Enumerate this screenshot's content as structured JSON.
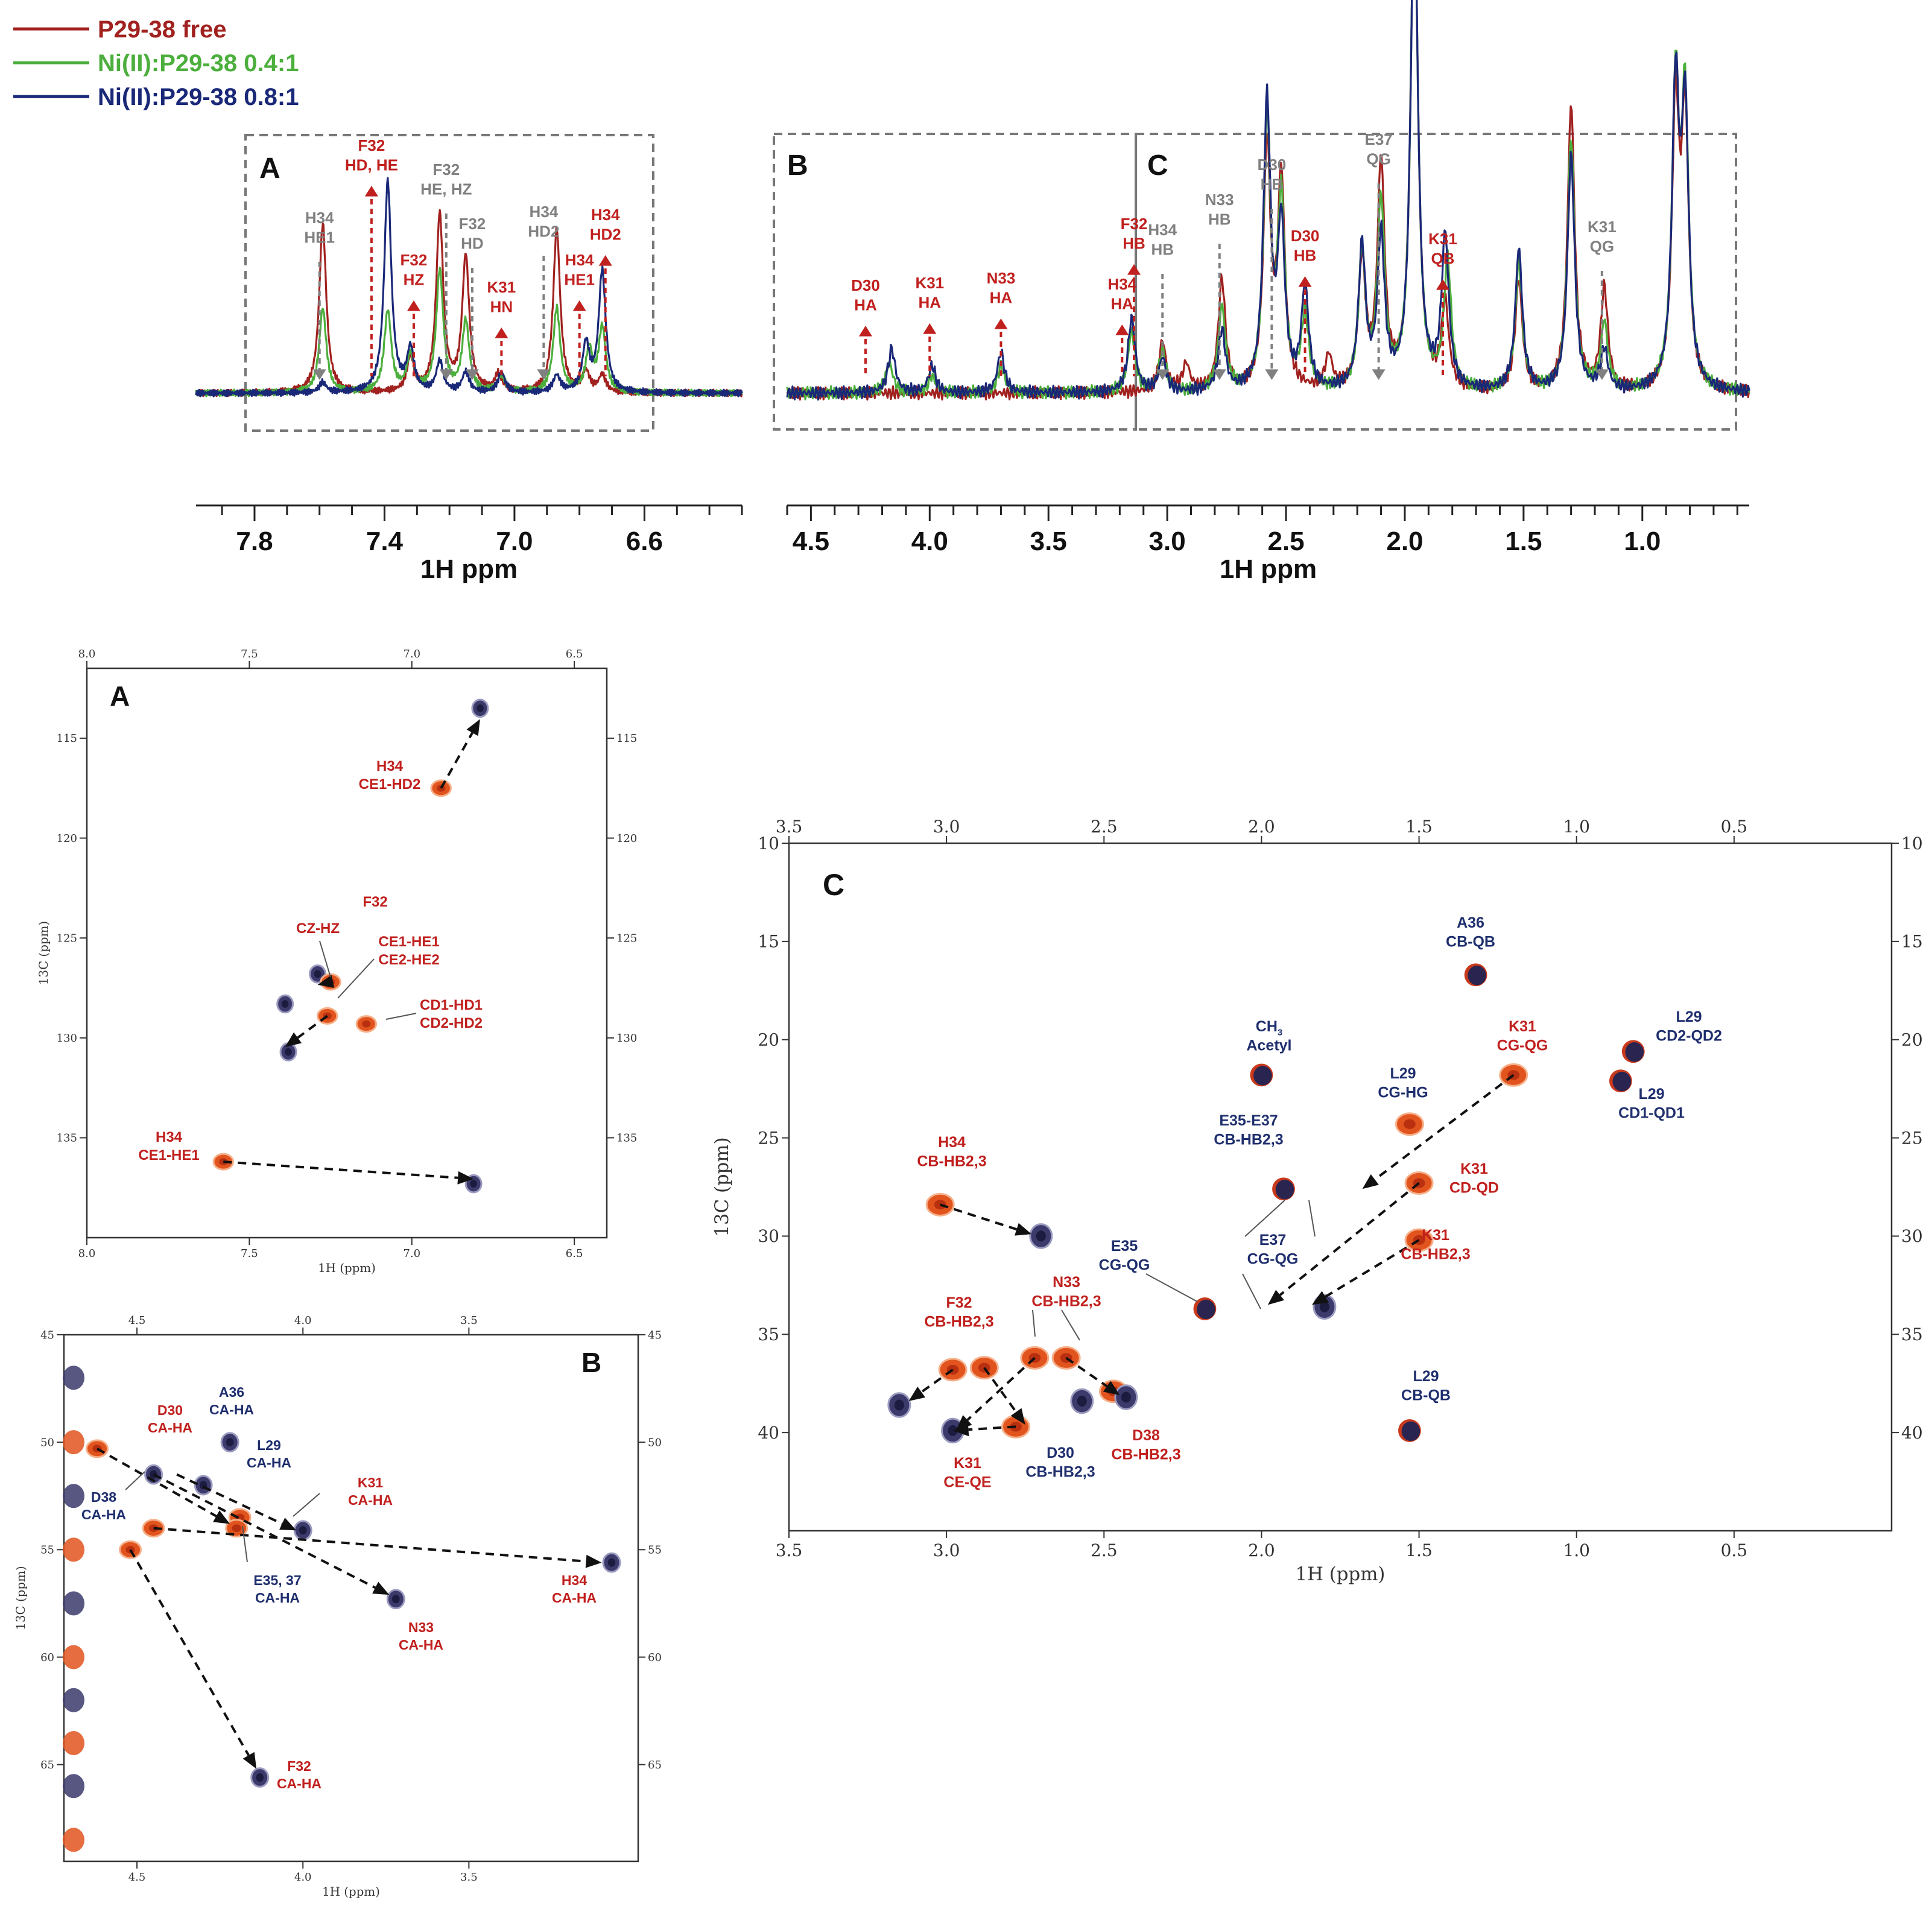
{
  "legend": [
    {
      "name": "P29-38 free",
      "color": "#a0211f"
    },
    {
      "name": "Ni(II):P29-38 0.4:1",
      "color": "#4caf3d"
    },
    {
      "name": "Ni(II):P29-38 0.8:1",
      "color": "#1a2878"
    }
  ],
  "colors": {
    "red": "#c0201e",
    "grey": "#808080",
    "navy": "#1f2f6e",
    "free_peak": "#e2541e",
    "bound_peak": "#3b3a6b"
  },
  "chart_data": [
    {
      "type": "line",
      "panel": "1D top-left",
      "xlabel": "1H ppm",
      "xticks": [
        "7.8",
        "7.4",
        "7.0",
        "6.6"
      ],
      "xlim": [
        7.98,
        6.3
      ],
      "box_label": "A",
      "series": [
        {
          "name": "P29-38 free",
          "peaks": [
            [
              7.59,
              1.0
            ],
            [
              7.39,
              0.0
            ],
            [
              7.32,
              0.2
            ],
            [
              7.23,
              1.05
            ],
            [
              7.15,
              0.8
            ],
            [
              7.05,
              0.1
            ],
            [
              6.87,
              0.97
            ],
            [
              6.78,
              0.12
            ],
            [
              6.73,
              0.1
            ]
          ]
        },
        {
          "name": "Ni(II):P29-38 0.4:1",
          "peaks": [
            [
              7.59,
              0.5
            ],
            [
              7.39,
              0.48
            ],
            [
              7.32,
              0.22
            ],
            [
              7.23,
              0.72
            ],
            [
              7.15,
              0.42
            ],
            [
              7.04,
              0.1
            ],
            [
              6.87,
              0.5
            ],
            [
              6.77,
              0.25
            ],
            [
              6.73,
              0.38
            ]
          ]
        },
        {
          "name": "Ni(II):P29-38 0.8:1",
          "peaks": [
            [
              7.59,
              0.06
            ],
            [
              7.39,
              1.25
            ],
            [
              7.32,
              0.25
            ],
            [
              7.23,
              0.18
            ],
            [
              7.15,
              0.12
            ],
            [
              7.04,
              0.12
            ],
            [
              6.87,
              0.1
            ],
            [
              6.78,
              0.28
            ],
            [
              6.73,
              0.72
            ]
          ]
        }
      ],
      "annotations": [
        {
          "text": [
            "H34",
            "HE1"
          ],
          "x": 7.6,
          "color": "grey",
          "arrow": "down"
        },
        {
          "text": [
            "F32",
            "HD, HE"
          ],
          "x": 7.44,
          "color": "red",
          "arrow": "up"
        },
        {
          "text": [
            "F32",
            "HZ"
          ],
          "x": 7.31,
          "color": "red",
          "arrow": "up"
        },
        {
          "text": [
            "F32",
            "HE, HZ"
          ],
          "x": 7.21,
          "color": "grey",
          "arrow": "down"
        },
        {
          "text": [
            "F32",
            "HD"
          ],
          "x": 7.13,
          "color": "grey",
          "arrow": "down"
        },
        {
          "text": [
            "K31",
            "HN"
          ],
          "x": 7.04,
          "color": "red",
          "arrow": "up"
        },
        {
          "text": [
            "H34",
            "HD2"
          ],
          "x": 6.91,
          "color": "grey",
          "arrow": "down"
        },
        {
          "text": [
            "H34",
            "HE1"
          ],
          "x": 6.8,
          "color": "red",
          "arrow": "up"
        },
        {
          "text": [
            "H34",
            "HD2"
          ],
          "x": 6.72,
          "color": "red",
          "arrow": "up"
        }
      ]
    },
    {
      "type": "line",
      "panel": "1D top-right",
      "xlabel": "1H ppm",
      "xticks": [
        "4.5",
        "4.0",
        "3.5",
        "3.0",
        "2.5",
        "2.0",
        "1.5",
        "1.0"
      ],
      "xlim": [
        4.6,
        0.55
      ],
      "box_labels": [
        "B",
        "C"
      ],
      "series": [
        {
          "name": "P29-38 free",
          "peaks": [
            [
              3.02,
              0.15
            ],
            [
              2.92,
              0.08
            ],
            [
              2.77,
              0.33
            ],
            [
              2.58,
              0.72
            ],
            [
              2.52,
              0.62
            ],
            [
              2.32,
              0.1
            ],
            [
              2.18,
              0.38
            ],
            [
              2.1,
              0.67
            ],
            [
              1.96,
              1.52
            ],
            [
              1.83,
              0.25
            ],
            [
              1.52,
              0.33
            ],
            [
              1.3,
              0.85
            ],
            [
              1.16,
              0.3
            ],
            [
              0.86,
              0.82
            ],
            [
              0.82,
              0.78
            ]
          ]
        },
        {
          "name": "Ni(II):P29-38 0.4:1",
          "peaks": [
            [
              4.17,
              0.09
            ],
            [
              3.99,
              0.05
            ],
            [
              3.7,
              0.08
            ],
            [
              3.15,
              0.18
            ],
            [
              3.02,
              0.12
            ],
            [
              2.77,
              0.25
            ],
            [
              2.58,
              0.8
            ],
            [
              2.52,
              0.55
            ],
            [
              2.42,
              0.22
            ],
            [
              2.18,
              0.4
            ],
            [
              2.1,
              0.55
            ],
            [
              1.96,
              1.52
            ],
            [
              1.82,
              0.38
            ],
            [
              1.52,
              0.38
            ],
            [
              1.3,
              0.75
            ],
            [
              1.16,
              0.2
            ],
            [
              0.86,
              0.88
            ],
            [
              0.82,
              0.82
            ]
          ]
        },
        {
          "name": "Ni(II):P29-38 0.8:1",
          "peaks": [
            [
              4.16,
              0.13
            ],
            [
              3.99,
              0.08
            ],
            [
              3.7,
              0.12
            ],
            [
              3.15,
              0.22
            ],
            [
              3.02,
              0.1
            ],
            [
              2.77,
              0.18
            ],
            [
              2.58,
              0.85
            ],
            [
              2.52,
              0.48
            ],
            [
              2.42,
              0.3
            ],
            [
              2.18,
              0.42
            ],
            [
              2.1,
              0.45
            ],
            [
              1.96,
              1.52
            ],
            [
              1.83,
              0.45
            ],
            [
              1.52,
              0.42
            ],
            [
              1.3,
              0.7
            ],
            [
              1.16,
              0.12
            ],
            [
              0.86,
              0.88
            ],
            [
              0.82,
              0.8
            ]
          ]
        }
      ],
      "annotations": [
        {
          "text": [
            "D30",
            "HA"
          ],
          "x": 4.27,
          "color": "red",
          "arrow": "up"
        },
        {
          "text": [
            "K31",
            "HA"
          ],
          "x": 4.0,
          "color": "red",
          "arrow": "up"
        },
        {
          "text": [
            "N33",
            "HA"
          ],
          "x": 3.7,
          "color": "red",
          "arrow": "up"
        },
        {
          "text": [
            "H34",
            "HA"
          ],
          "x": 3.19,
          "color": "red",
          "arrow": "up"
        },
        {
          "text": [
            "F32",
            "HB"
          ],
          "x": 3.14,
          "color": "red",
          "arrow": "up"
        },
        {
          "text": [
            "H34",
            "HB"
          ],
          "x": 3.02,
          "color": "grey",
          "arrow": "down"
        },
        {
          "text": [
            "N33",
            "HB"
          ],
          "x": 2.78,
          "color": "grey",
          "arrow": "down"
        },
        {
          "text": [
            "D30",
            "HB"
          ],
          "x": 2.56,
          "color": "grey",
          "arrow": "down"
        },
        {
          "text": [
            "D30",
            "HB"
          ],
          "x": 2.42,
          "color": "red",
          "arrow": "up"
        },
        {
          "text": [
            "E37",
            "QG"
          ],
          "x": 2.11,
          "color": "grey",
          "arrow": "down"
        },
        {
          "text": [
            "K31",
            "QB"
          ],
          "x": 1.84,
          "color": "red",
          "arrow": "up"
        },
        {
          "text": [
            "K31",
            "QG"
          ],
          "x": 1.17,
          "color": "grey",
          "arrow": "down"
        }
      ]
    },
    {
      "type": "scatter",
      "panel": "2D A",
      "box_label": "A",
      "xlabel": "1H (ppm)",
      "ylabel": "13C (ppm)",
      "xlim": [
        8.0,
        6.4
      ],
      "ylim": [
        111.5,
        140
      ],
      "xticks": [
        "8.0",
        "7.5",
        "7.0",
        "6.5"
      ],
      "yticks": [
        "115",
        "120",
        "125",
        "130",
        "135"
      ],
      "peaks": [
        {
          "h": 6.79,
          "c": 113.5,
          "state": "bound"
        },
        {
          "h": 6.91,
          "c": 117.5,
          "state": "free"
        },
        {
          "h": 7.29,
          "c": 126.8,
          "state": "bound"
        },
        {
          "h": 7.25,
          "c": 127.2,
          "state": "free"
        },
        {
          "h": 7.39,
          "c": 128.3,
          "state": "bound"
        },
        {
          "h": 7.26,
          "c": 128.9,
          "state": "free"
        },
        {
          "h": 7.14,
          "c": 129.3,
          "state": "free"
        },
        {
          "h": 7.38,
          "c": 130.7,
          "state": "bound"
        },
        {
          "h": 7.58,
          "c": 136.2,
          "state": "free"
        },
        {
          "h": 6.81,
          "c": 137.3,
          "state": "bound"
        }
      ],
      "labels": [
        {
          "text": [
            "H34",
            "CE1-HD2"
          ],
          "color": "red"
        },
        {
          "text": [
            "F32"
          ],
          "color": "red"
        },
        {
          "text": [
            "CZ-HZ"
          ],
          "color": "red"
        },
        {
          "text": [
            "CE1-HE1",
            "CE2-HE2"
          ],
          "color": "red"
        },
        {
          "text": [
            "CD1-HD1",
            "CD2-HD2"
          ],
          "color": "red"
        },
        {
          "text": [
            "H34",
            "CE1-HE1"
          ],
          "color": "red"
        }
      ]
    },
    {
      "type": "scatter",
      "panel": "2D B",
      "box_label": "B",
      "xlabel": "1H (ppm)",
      "ylabel": "13C (ppm)",
      "xlim": [
        4.72,
        2.99
      ],
      "ylim": [
        45,
        69.5
      ],
      "xticks": [
        "4.5",
        "4.0",
        "3.5"
      ],
      "yticks": [
        "45",
        "50",
        "55",
        "60",
        "65"
      ],
      "peaks": [
        {
          "h": 4.22,
          "c": 50.0,
          "state": "bound"
        },
        {
          "h": 4.3,
          "c": 52.0,
          "state": "bound"
        },
        {
          "h": 4.45,
          "c": 51.5,
          "state": "bound"
        },
        {
          "h": 4.19,
          "c": 53.5,
          "state": "free"
        },
        {
          "h": 4.2,
          "c": 54.0,
          "state": "free"
        },
        {
          "h": 4.0,
          "c": 54.1,
          "state": "bound"
        },
        {
          "h": 3.72,
          "c": 57.3,
          "state": "bound"
        },
        {
          "h": 3.07,
          "c": 55.6,
          "state": "bound"
        },
        {
          "h": 4.13,
          "c": 65.6,
          "state": "bound"
        },
        {
          "h": 4.62,
          "c": 50.3,
          "state": "free"
        },
        {
          "h": 4.45,
          "c": 54.0,
          "state": "free"
        },
        {
          "h": 4.52,
          "c": 55.0,
          "state": "free"
        }
      ],
      "labels": [
        {
          "text": [
            "A36",
            "CA-HA"
          ],
          "color": "navy"
        },
        {
          "text": [
            "D30",
            "CA-HA"
          ],
          "color": "red"
        },
        {
          "text": [
            "L29",
            "CA-HA"
          ],
          "color": "navy"
        },
        {
          "text": [
            "K31",
            "CA-HA"
          ],
          "color": "red"
        },
        {
          "text": [
            "D38",
            "CA-HA"
          ],
          "color": "navy"
        },
        {
          "text": [
            "E35, 37",
            "CA-HA"
          ],
          "color": "navy"
        },
        {
          "text": [
            "N33",
            "CA-HA"
          ],
          "color": "red"
        },
        {
          "text": [
            "H34",
            "CA-HA"
          ],
          "color": "red"
        },
        {
          "text": [
            "F32",
            "CA-HA"
          ],
          "color": "red"
        }
      ]
    },
    {
      "type": "scatter",
      "panel": "2D C",
      "box_label": "C",
      "xlabel": "1H (ppm)",
      "ylabel": "13C (ppm)",
      "xlim": [
        3.5,
        0.0
      ],
      "ylim": [
        10,
        45
      ],
      "xticks": [
        "3.5",
        "3.0",
        "2.5",
        "2.0",
        "1.5",
        "1.0",
        "0.5"
      ],
      "yticks": [
        "10",
        "15",
        "20",
        "25",
        "30",
        "35",
        "40"
      ],
      "peaks": [
        {
          "h": 1.32,
          "c": 16.7,
          "state": "overlap"
        },
        {
          "h": 0.82,
          "c": 20.6,
          "state": "overlap"
        },
        {
          "h": 0.86,
          "c": 22.1,
          "state": "overlap"
        },
        {
          "h": 1.2,
          "c": 21.8,
          "state": "free"
        },
        {
          "h": 2.0,
          "c": 21.8,
          "state": "overlap"
        },
        {
          "h": 1.53,
          "c": 24.3,
          "state": "free"
        },
        {
          "h": 1.5,
          "c": 27.3,
          "state": "free"
        },
        {
          "h": 1.93,
          "c": 27.6,
          "state": "overlap"
        },
        {
          "h": 1.5,
          "c": 30.2,
          "state": "free"
        },
        {
          "h": 3.02,
          "c": 28.4,
          "state": "free"
        },
        {
          "h": 2.7,
          "c": 30.0,
          "state": "bound"
        },
        {
          "h": 2.18,
          "c": 33.7,
          "state": "overlap"
        },
        {
          "h": 1.8,
          "c": 33.6,
          "state": "bound"
        },
        {
          "h": 2.98,
          "c": 36.8,
          "state": "free"
        },
        {
          "h": 2.88,
          "c": 36.7,
          "state": "free"
        },
        {
          "h": 2.72,
          "c": 36.2,
          "state": "free"
        },
        {
          "h": 2.62,
          "c": 36.2,
          "state": "free"
        },
        {
          "h": 3.15,
          "c": 38.6,
          "state": "bound"
        },
        {
          "h": 2.57,
          "c": 38.4,
          "state": "bound"
        },
        {
          "h": 2.47,
          "c": 37.9,
          "state": "free"
        },
        {
          "h": 2.43,
          "c": 38.2,
          "state": "bound"
        },
        {
          "h": 2.78,
          "c": 39.7,
          "state": "free"
        },
        {
          "h": 2.98,
          "c": 39.9,
          "state": "bound"
        },
        {
          "h": 1.53,
          "c": 39.9,
          "state": "overlap"
        }
      ],
      "labels": [
        {
          "text": [
            "A36",
            "CB-QB"
          ],
          "color": "navy"
        },
        {
          "text": [
            "L29",
            "CD2-QD2"
          ],
          "color": "navy"
        },
        {
          "text": [
            "L29",
            "CD1-QD1"
          ],
          "color": "navy"
        },
        {
          "text": [
            "CH",
            "Acetyl"
          ],
          "color": "navy",
          "subscript": "3"
        },
        {
          "text": [
            "K31",
            "CG-QG"
          ],
          "color": "red"
        },
        {
          "text": [
            "L29",
            "CG-HG"
          ],
          "color": "navy"
        },
        {
          "text": [
            "E35-E37",
            "CB-HB2,3"
          ],
          "color": "navy"
        },
        {
          "text": [
            "H34",
            "CB-HB2,3"
          ],
          "color": "red"
        },
        {
          "text": [
            "K31",
            "CD-QD"
          ],
          "color": "red"
        },
        {
          "text": [
            "K31",
            "CB-HB2,3"
          ],
          "color": "red"
        },
        {
          "text": [
            "E35",
            "CG-QG"
          ],
          "color": "navy"
        },
        {
          "text": [
            "E37",
            "CG-QG"
          ],
          "color": "navy"
        },
        {
          "text": [
            "N33",
            "CB-HB2,3"
          ],
          "color": "red"
        },
        {
          "text": [
            "F32",
            "CB-HB2,3"
          ],
          "color": "red"
        },
        {
          "text": [
            "L29",
            "CB-QB"
          ],
          "color": "navy"
        },
        {
          "text": [
            "K31",
            "CE-QE"
          ],
          "color": "red"
        },
        {
          "text": [
            "D30",
            "CB-HB2,3"
          ],
          "color": "navy"
        },
        {
          "text": [
            "D38",
            "CB-HB2,3"
          ],
          "color": "red"
        }
      ]
    }
  ]
}
